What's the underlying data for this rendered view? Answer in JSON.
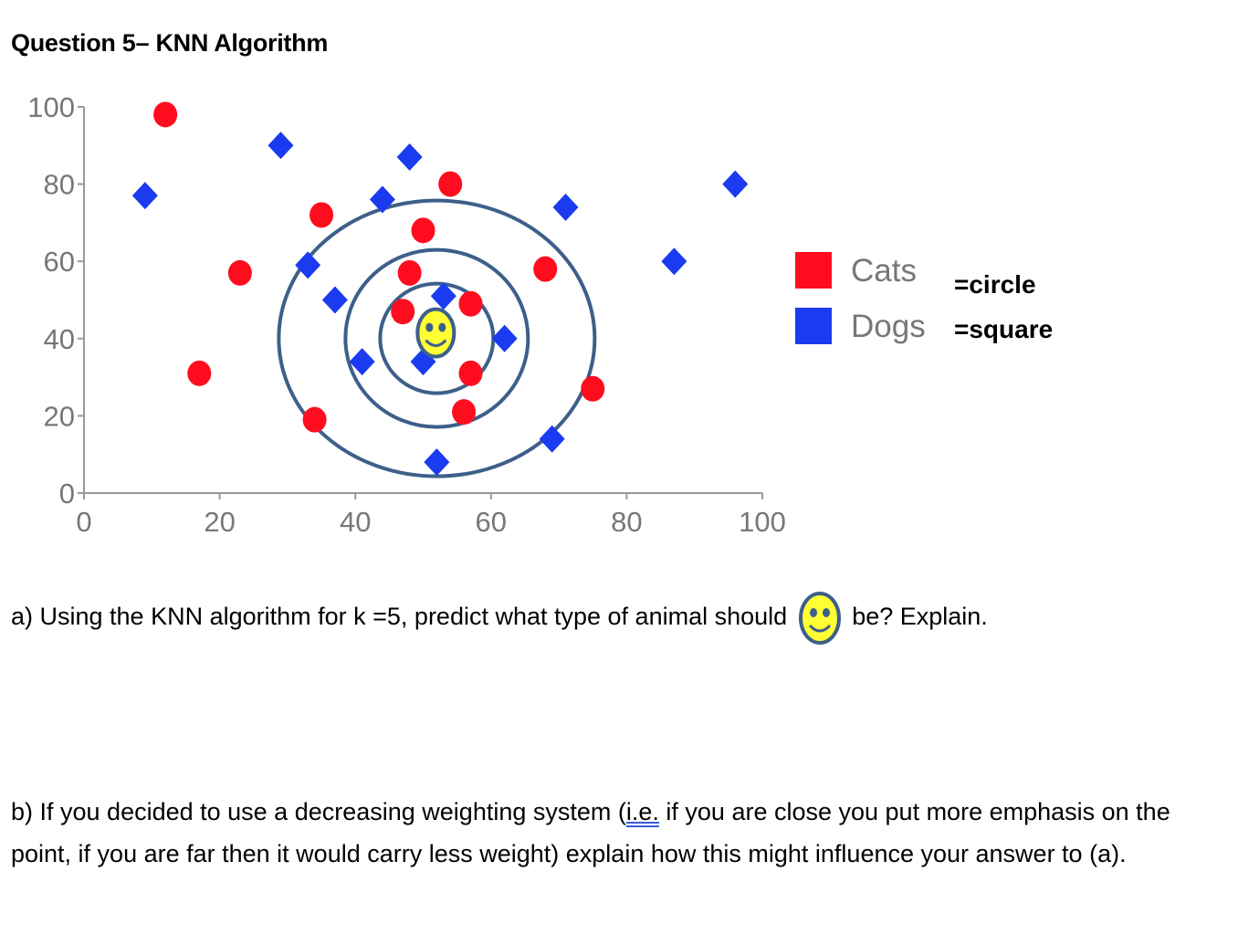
{
  "title": "Question 5– KNN Algorithm",
  "chart_data": {
    "type": "scatter",
    "xlim": [
      0,
      100
    ],
    "ylim": [
      0,
      100
    ],
    "x_ticks": [
      "0",
      "20",
      "40",
      "60",
      "80",
      "100"
    ],
    "y_ticks": [
      "0",
      "20",
      "40",
      "60",
      "80",
      "100"
    ],
    "grid": false,
    "legend_placement": "right",
    "series": [
      {
        "name": "Cats",
        "note": "=circle",
        "color": "#ff0d1f",
        "marker": "circle",
        "points": [
          [
            12,
            98
          ],
          [
            54,
            80
          ],
          [
            35,
            72
          ],
          [
            50,
            68
          ],
          [
            23,
            57
          ],
          [
            68,
            58
          ],
          [
            48,
            57
          ],
          [
            57,
            49
          ],
          [
            47,
            47
          ],
          [
            57,
            31
          ],
          [
            17,
            31
          ],
          [
            75,
            27
          ],
          [
            56,
            21
          ],
          [
            34,
            19
          ]
        ]
      },
      {
        "name": "Dogs",
        "note": "=square",
        "color": "#1a3bf0",
        "marker": "diamond",
        "points": [
          [
            9,
            77
          ],
          [
            29,
            90
          ],
          [
            48,
            87
          ],
          [
            44,
            76
          ],
          [
            71,
            74
          ],
          [
            96,
            80
          ],
          [
            87,
            60
          ],
          [
            33,
            59
          ],
          [
            37,
            50
          ],
          [
            53,
            51
          ],
          [
            62,
            40
          ],
          [
            41,
            34
          ],
          [
            50,
            34
          ],
          [
            69,
            14
          ],
          [
            52,
            8
          ]
        ]
      }
    ],
    "query_point": {
      "x": 52,
      "y": 41,
      "icon": "smiley-face-icon",
      "color": "#ffff33"
    },
    "ring_color": "#3d5f8a"
  },
  "question_a": {
    "before": "a) Using the KNN algorithm for k =5, predict what type of animal should",
    "after": "be?  Explain."
  },
  "question_b": {
    "part1": "b) If you decided to use a decreasing weighting system (",
    "ie": "i.e.",
    "part2": " if you are close you put more emphasis on the point, if you are far then it would carry less weight) explain how this might influence your answer to (a)."
  }
}
